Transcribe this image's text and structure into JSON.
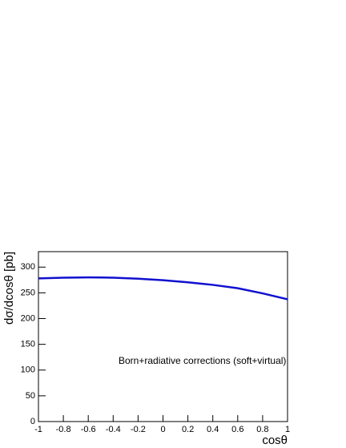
{
  "chart_data": {
    "type": "line",
    "annotation": "Born+radiative corrections (soft+virtual)",
    "xlabel": "cosθ",
    "ylabel": "dσ/dcosθ [pb]",
    "x": [
      -1,
      -0.8,
      -0.6,
      -0.4,
      -0.2,
      0,
      0.2,
      0.4,
      0.6,
      0.8,
      1
    ],
    "series": [
      {
        "color": "#1010d0",
        "values": [
          278,
          279.5,
          280,
          279.5,
          277.5,
          274.5,
          270.5,
          265.5,
          259,
          249,
          237.5
        ]
      }
    ],
    "xlim": [
      -1,
      1
    ],
    "ylim": [
      0,
      330
    ],
    "xticks": [
      -1,
      -0.8,
      -0.6,
      -0.4,
      -0.2,
      0,
      0.2,
      0.4,
      0.6,
      0.8,
      1
    ],
    "yticks": [
      0,
      50,
      100,
      150,
      200,
      250,
      300
    ]
  }
}
